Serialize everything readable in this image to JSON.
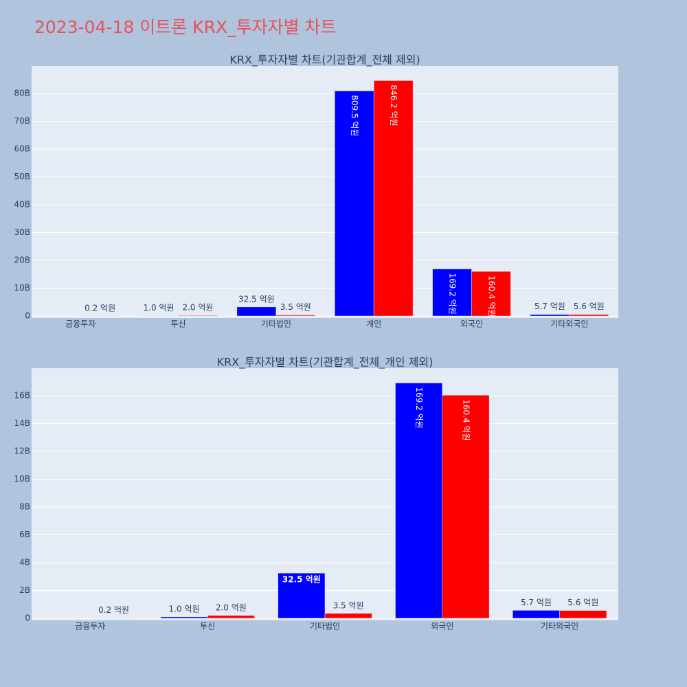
{
  "title": "2023-04-18 이트론 KRX_투자자별 차트",
  "chart_data": [
    {
      "type": "bar",
      "title": "KRX_투자자별 차트(기관합계_전체 제외)",
      "categories": [
        "금융투자",
        "투신",
        "기타법인",
        "개인",
        "외국인",
        "기타외국인"
      ],
      "series": [
        {
          "color": "#0000ff",
          "values": [
            null,
            100000000,
            3250000000,
            80950000000,
            16920000000,
            570000000
          ],
          "value_labels": [
            null,
            "1.0 억원",
            "32.5 억원",
            "809.5 억원",
            "169.2 억원",
            "5.7 억원"
          ]
        },
        {
          "color": "#ff0000",
          "values": [
            20000000,
            200000000,
            350000000,
            84620000000,
            16040000000,
            560000000
          ],
          "value_labels": [
            "0.2 억원",
            "2.0 억원",
            "3.5 억원",
            "846.2 억원",
            "160.4 억원",
            "5.6 억원"
          ]
        }
      ],
      "ylim": [
        -740000000,
        89900000000
      ],
      "yticks": [
        0,
        {
          "value": 10000000000,
          "label": "10B"
        },
        {
          "value": 20000000000,
          "label": "20B"
        },
        {
          "value": 30000000000,
          "label": "30B"
        },
        {
          "value": 40000000000,
          "label": "40B"
        },
        {
          "value": 50000000000,
          "label": "50B"
        },
        {
          "value": 60000000000,
          "label": "60B"
        },
        {
          "value": 70000000000,
          "label": "70B"
        },
        {
          "value": 80000000000,
          "label": "80B"
        }
      ],
      "grid": true
    },
    {
      "type": "bar",
      "title": "KRX_투자자별 차트(기관합계_전체_개인 제외)",
      "categories": [
        "금융투자",
        "투신",
        "기타법인",
        "외국인",
        "기타외국인"
      ],
      "series": [
        {
          "color": "#0000ff",
          "values": [
            null,
            100000000,
            3250000000,
            16920000000,
            570000000
          ],
          "value_labels": [
            null,
            "1.0 억원",
            "32.5 억원",
            "169.2 억원",
            "5.7 억원"
          ]
        },
        {
          "color": "#ff0000",
          "values": [
            20000000,
            200000000,
            350000000,
            16040000000,
            560000000
          ],
          "value_labels": [
            "0.2 억원",
            "2.0 억원",
            "3.5 억원",
            "160.4 억원",
            "5.6 억원"
          ]
        }
      ],
      "ylim": [
        -150000000,
        17980000000
      ],
      "yticks": [
        0,
        {
          "value": 2000000000,
          "label": "2B"
        },
        {
          "value": 4000000000,
          "label": "4B"
        },
        {
          "value": 6000000000,
          "label": "6B"
        },
        {
          "value": 8000000000,
          "label": "8B"
        },
        {
          "value": 10000000000,
          "label": "10B"
        },
        {
          "value": 12000000000,
          "label": "12B"
        },
        {
          "value": 14000000000,
          "label": "14B"
        },
        {
          "value": 16000000000,
          "label": "16B"
        }
      ],
      "grid": true
    }
  ]
}
